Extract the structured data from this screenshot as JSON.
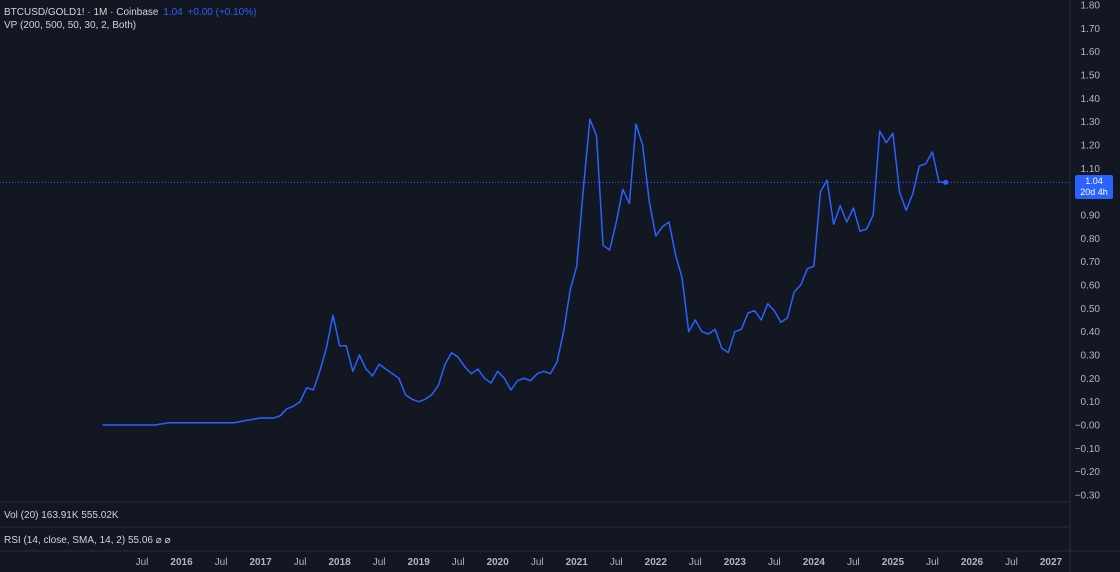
{
  "header": {
    "symbol": "BTCUSD/GOLD1! · 1M · Coinbase",
    "last_value": "1.04",
    "change": "+0.00 (+0.10%)",
    "indicator_vp": "VP (200, 500, 50, 30, 2, Both)"
  },
  "volume_pane": {
    "label": "Vol (20)",
    "value_1": "163.91K",
    "value_2": "555.02K"
  },
  "rsi_pane": {
    "label": "RSI (14, close, SMA, 14, 2)",
    "value": "55.06",
    "symbols": "⌀ ⌀"
  },
  "price_label": {
    "value": "1.04",
    "countdown": "20d 4h"
  },
  "colors": {
    "background": "#131722",
    "line": "#2962ff",
    "axis_text": "#b2b5be",
    "separator": "#2a2e39"
  },
  "chart_data": {
    "type": "line",
    "title": "BTCUSD/GOLD1!",
    "interval": "monthly",
    "ylim": [
      -0.3,
      1.8
    ],
    "y_ticks": [
      "1.80",
      "1.70",
      "1.60",
      "1.50",
      "1.40",
      "1.30",
      "1.20",
      "1.10",
      "0.90",
      "0.80",
      "0.70",
      "0.60",
      "0.50",
      "0.40",
      "0.30",
      "0.20",
      "0.10",
      "−0.00",
      "−0.10",
      "−0.20",
      "−0.30"
    ],
    "x_ticks": [
      "Jul",
      "2016",
      "Jul",
      "2017",
      "Jul",
      "2018",
      "Jul",
      "2019",
      "Jul",
      "2020",
      "Jul",
      "2021",
      "Jul",
      "2022",
      "Jul",
      "2023",
      "Jul",
      "2024",
      "Jul",
      "2025",
      "Jul",
      "2026",
      "Jul",
      "2027"
    ],
    "x_tick_dates": [
      "2015-07",
      "2016-01",
      "2016-07",
      "2017-01",
      "2017-07",
      "2018-01",
      "2018-07",
      "2019-01",
      "2019-07",
      "2020-01",
      "2020-07",
      "2021-01",
      "2021-07",
      "2022-01",
      "2022-07",
      "2023-01",
      "2023-07",
      "2024-01",
      "2024-07",
      "2025-01",
      "2025-07",
      "2026-01",
      "2026-07",
      "2027-01"
    ],
    "current_value": 1.04,
    "series": [
      {
        "points": [
          [
            "2015-01",
            0.0
          ],
          [
            "2015-03",
            0.0
          ],
          [
            "2015-05",
            0.0
          ],
          [
            "2015-07",
            0.0
          ],
          [
            "2015-09",
            0.0
          ],
          [
            "2015-11",
            0.01
          ],
          [
            "2016-01",
            0.01
          ],
          [
            "2016-03",
            0.01
          ],
          [
            "2016-05",
            0.01
          ],
          [
            "2016-07",
            0.01
          ],
          [
            "2016-09",
            0.01
          ],
          [
            "2016-11",
            0.02
          ],
          [
            "2017-01",
            0.03
          ],
          [
            "2017-02",
            0.03
          ],
          [
            "2017-03",
            0.03
          ],
          [
            "2017-04",
            0.04
          ],
          [
            "2017-05",
            0.07
          ],
          [
            "2017-06",
            0.08
          ],
          [
            "2017-07",
            0.1
          ],
          [
            "2017-08",
            0.16
          ],
          [
            "2017-09",
            0.15
          ],
          [
            "2017-10",
            0.23
          ],
          [
            "2017-11",
            0.33
          ],
          [
            "2017-12",
            0.47
          ],
          [
            "2018-01",
            0.34
          ],
          [
            "2018-02",
            0.34
          ],
          [
            "2018-03",
            0.23
          ],
          [
            "2018-04",
            0.3
          ],
          [
            "2018-05",
            0.24
          ],
          [
            "2018-06",
            0.21
          ],
          [
            "2018-07",
            0.26
          ],
          [
            "2018-08",
            0.24
          ],
          [
            "2018-09",
            0.22
          ],
          [
            "2018-10",
            0.2
          ],
          [
            "2018-11",
            0.13
          ],
          [
            "2018-12",
            0.11
          ],
          [
            "2019-01",
            0.1
          ],
          [
            "2019-02",
            0.11
          ],
          [
            "2019-03",
            0.13
          ],
          [
            "2019-04",
            0.17
          ],
          [
            "2019-05",
            0.26
          ],
          [
            "2019-06",
            0.31
          ],
          [
            "2019-07",
            0.29
          ],
          [
            "2019-08",
            0.25
          ],
          [
            "2019-09",
            0.22
          ],
          [
            "2019-10",
            0.24
          ],
          [
            "2019-11",
            0.2
          ],
          [
            "2019-12",
            0.18
          ],
          [
            "2020-01",
            0.23
          ],
          [
            "2020-02",
            0.2
          ],
          [
            "2020-03",
            0.15
          ],
          [
            "2020-04",
            0.19
          ],
          [
            "2020-05",
            0.2
          ],
          [
            "2020-06",
            0.19
          ],
          [
            "2020-07",
            0.22
          ],
          [
            "2020-08",
            0.23
          ],
          [
            "2020-09",
            0.22
          ],
          [
            "2020-10",
            0.27
          ],
          [
            "2020-11",
            0.4
          ],
          [
            "2020-12",
            0.58
          ],
          [
            "2021-01",
            0.68
          ],
          [
            "2021-02",
            1.01
          ],
          [
            "2021-03",
            1.31
          ],
          [
            "2021-04",
            1.24
          ],
          [
            "2021-05",
            0.77
          ],
          [
            "2021-06",
            0.75
          ],
          [
            "2021-07",
            0.87
          ],
          [
            "2021-08",
            1.01
          ],
          [
            "2021-09",
            0.95
          ],
          [
            "2021-10",
            1.29
          ],
          [
            "2021-11",
            1.2
          ],
          [
            "2021-12",
            0.96
          ],
          [
            "2022-01",
            0.81
          ],
          [
            "2022-02",
            0.85
          ],
          [
            "2022-03",
            0.87
          ],
          [
            "2022-04",
            0.73
          ],
          [
            "2022-05",
            0.63
          ],
          [
            "2022-06",
            0.4
          ],
          [
            "2022-07",
            0.45
          ],
          [
            "2022-08",
            0.4
          ],
          [
            "2022-09",
            0.39
          ],
          [
            "2022-10",
            0.41
          ],
          [
            "2022-11",
            0.33
          ],
          [
            "2022-12",
            0.31
          ],
          [
            "2023-01",
            0.4
          ],
          [
            "2023-02",
            0.41
          ],
          [
            "2023-03",
            0.48
          ],
          [
            "2023-04",
            0.49
          ],
          [
            "2023-05",
            0.45
          ],
          [
            "2023-06",
            0.52
          ],
          [
            "2023-07",
            0.49
          ],
          [
            "2023-08",
            0.44
          ],
          [
            "2023-09",
            0.46
          ],
          [
            "2023-10",
            0.57
          ],
          [
            "2023-11",
            0.6
          ],
          [
            "2023-12",
            0.67
          ],
          [
            "2024-01",
            0.68
          ],
          [
            "2024-02",
            1.0
          ],
          [
            "2024-03",
            1.05
          ],
          [
            "2024-04",
            0.86
          ],
          [
            "2024-05",
            0.94
          ],
          [
            "2024-06",
            0.87
          ],
          [
            "2024-07",
            0.93
          ],
          [
            "2024-08",
            0.83
          ],
          [
            "2024-09",
            0.84
          ],
          [
            "2024-10",
            0.9
          ],
          [
            "2024-11",
            1.26
          ],
          [
            "2024-12",
            1.21
          ],
          [
            "2025-01",
            1.25
          ],
          [
            "2025-02",
            1.0
          ],
          [
            "2025-03",
            0.92
          ],
          [
            "2025-04",
            0.99
          ],
          [
            "2025-05",
            1.11
          ],
          [
            "2025-06",
            1.12
          ],
          [
            "2025-07",
            1.17
          ],
          [
            "2025-08",
            1.04
          ],
          [
            "2025-09",
            1.04
          ]
        ]
      }
    ]
  }
}
